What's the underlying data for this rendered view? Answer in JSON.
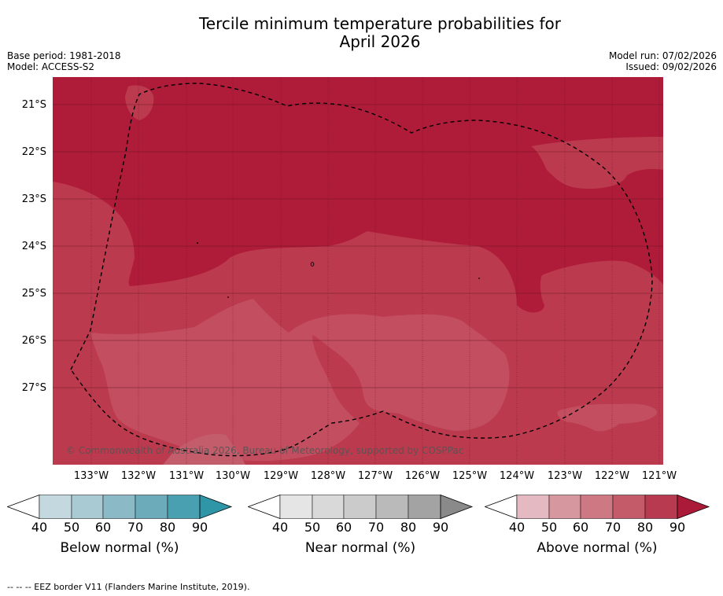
{
  "title_line1": "Tercile minimum temperature probabilities for",
  "title_line2": "April 2026",
  "base_period": "Base period: 1981-2018",
  "model": "Model: ACCESS-S2",
  "model_run": "Model run: 07/02/2026",
  "issued": "Issued: 09/02/2026",
  "copyright": "© Commonwealth of Australia 2026, Bureau of Meteorology, supported by COSPPac",
  "lat_labels": [
    "21°S",
    "22°S",
    "23°S",
    "24°S",
    "25°S",
    "26°S",
    "27°S"
  ],
  "lon_labels": [
    "133°W",
    "132°W",
    "131°W",
    "130°W",
    "129°W",
    "128°W",
    "127°W",
    "126°W",
    "125°W",
    "124°W",
    "123°W",
    "122°W",
    "121°W"
  ],
  "colorbars": [
    {
      "title": "Below normal (%)",
      "ticks": [
        "40",
        "50",
        "60",
        "70",
        "80",
        "90"
      ],
      "colors": [
        "#ffffff",
        "#c3d9df",
        "#a9cad2",
        "#8bbac6",
        "#6cabba",
        "#49a0b1",
        "#2f96a8"
      ]
    },
    {
      "title": "Near normal (%)",
      "ticks": [
        "40",
        "50",
        "60",
        "70",
        "80",
        "90"
      ],
      "colors": [
        "#ffffff",
        "#e5e5e5",
        "#d9d9d9",
        "#cbcbcb",
        "#bababa",
        "#a3a3a3",
        "#8a8a8a"
      ]
    },
    {
      "title": "Above normal (%)",
      "ticks": [
        "40",
        "50",
        "60",
        "70",
        "80",
        "90"
      ],
      "colors": [
        "#ffffff",
        "#e4b9c1",
        "#d7979f",
        "#cd7883",
        "#c35b69",
        "#b83a50",
        "#ac1a3a"
      ]
    }
  ],
  "map_colors": {
    "dark": "#af1c39",
    "mid": "#bc3a4e",
    "light": "#c24e60",
    "pale": "#c35c6b"
  },
  "footnote": "--  --  -- EEZ border V11 (Flanders Marine Institute, 2019)."
}
